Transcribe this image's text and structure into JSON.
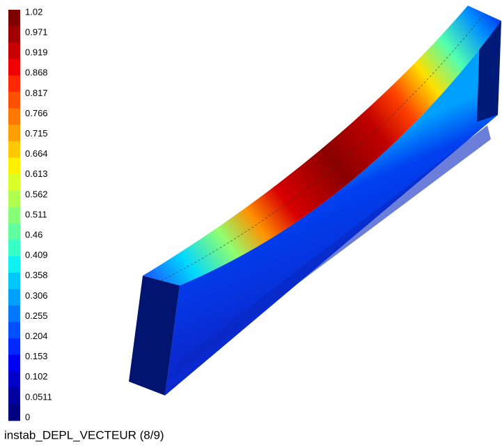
{
  "colorbar": {
    "labels": [
      1.02,
      0.971,
      0.919,
      0.868,
      0.817,
      0.766,
      0.715,
      0.664,
      0.613,
      0.562,
      0.511,
      0.46,
      0.409,
      0.358,
      0.306,
      0.255,
      0.204,
      0.153,
      0.102,
      0.0511,
      0
    ],
    "colors": [
      "#7f0000",
      "#a00000",
      "#c80000",
      "#f00000",
      "#ff2800",
      "#ff5000",
      "#ff7800",
      "#ffa000",
      "#ffc800",
      "#fff000",
      "#d8ff28",
      "#b0ff50",
      "#88ff78",
      "#60ffa0",
      "#38ffc8",
      "#10f0f0",
      "#00c8ff",
      "#00a0ff",
      "#0078ff",
      "#0050ff",
      "#0028ff",
      "#0000f0",
      "#0000c8",
      "#0000a0",
      "#000080"
    ]
  },
  "caption": "instab_DEPL_VECTEUR (8/9)"
}
